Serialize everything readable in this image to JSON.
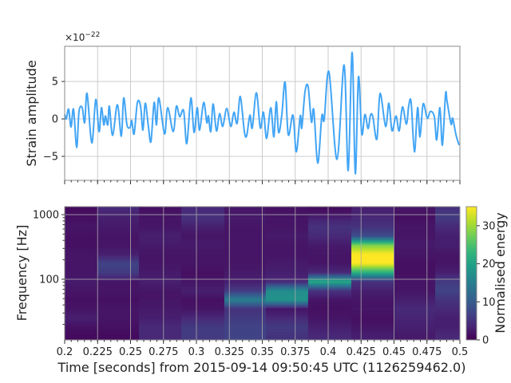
{
  "chart_data": [
    {
      "type": "line",
      "ylabel": "Strain amplitude",
      "y_multiplier_label": "×10",
      "y_multiplier_exponent": "−22",
      "xlim": [
        0.2,
        0.5
      ],
      "ylim": [
        -8.2,
        9.7
      ],
      "yticks": [
        -5,
        0,
        5
      ],
      "ytick_labels": [
        "−5",
        "0",
        "5"
      ],
      "xticks": [
        0.2,
        0.225,
        0.25,
        0.275,
        0.3,
        0.325,
        0.35,
        0.375,
        0.4,
        0.425,
        0.45,
        0.475,
        0.5
      ],
      "grid": true,
      "color": "#42a5f5",
      "series": [
        {
          "x": [
            0.2,
            0.2012,
            0.203,
            0.2048,
            0.2067,
            0.2091,
            0.2109,
            0.2133,
            0.2152,
            0.217,
            0.2206,
            0.2236,
            0.2261,
            0.2279,
            0.2297,
            0.2309,
            0.2327,
            0.2339,
            0.2364,
            0.24,
            0.243,
            0.2448,
            0.2473,
            0.2497,
            0.2509,
            0.2527,
            0.2552,
            0.2576,
            0.2594,
            0.2612,
            0.2636,
            0.2655,
            0.2679,
            0.2697,
            0.2715,
            0.2758,
            0.2782,
            0.2824,
            0.2848,
            0.2873,
            0.2903,
            0.2927,
            0.2958,
            0.2982,
            0.3006,
            0.3024,
            0.3055,
            0.3079,
            0.3091,
            0.3109,
            0.3127,
            0.3152,
            0.3176,
            0.32,
            0.323,
            0.3261,
            0.3285,
            0.3309,
            0.3333,
            0.3364,
            0.3382,
            0.3406,
            0.3424,
            0.3455,
            0.3485,
            0.3509,
            0.3533,
            0.3564,
            0.3588,
            0.3606,
            0.3624,
            0.3648,
            0.3673,
            0.3697,
            0.3733,
            0.3758,
            0.3788,
            0.38,
            0.3824,
            0.3848,
            0.3873,
            0.3891,
            0.3921,
            0.3952,
            0.397,
            0.4006,
            0.4067,
            0.4121,
            0.4152,
            0.4182,
            0.4206,
            0.423,
            0.4255,
            0.4279,
            0.4303,
            0.4321,
            0.4339,
            0.437,
            0.4394,
            0.4436,
            0.4461,
            0.4485,
            0.4515,
            0.4539,
            0.4564,
            0.4594,
            0.4612,
            0.463,
            0.4655,
            0.4679,
            0.4697,
            0.4721,
            0.4752,
            0.4776,
            0.4806,
            0.4824,
            0.4848,
            0.4867,
            0.4891,
            0.4903,
            0.4933,
            0.4945,
            0.497,
            0.4994
          ],
          "y": [
            0.6,
            0,
            1.3,
            -1.1,
            1.3,
            -3.8,
            1,
            1.5,
            -0.5,
            3.4,
            -3.2,
            2.6,
            -1.7,
            1.5,
            -0.8,
            0.4,
            -0.8,
            1.7,
            -2.2,
            1.9,
            -2.3,
            2.8,
            -0.8,
            -1.1,
            -0.2,
            -2,
            2.2,
            1.7,
            -1.5,
            2.1,
            -1.1,
            -3,
            2.2,
            -0.8,
            2.8,
            -2,
            1.5,
            -1.7,
            1.7,
            0.3,
            1.1,
            -3.3,
            2.8,
            -1.8,
            1.5,
            -1.5,
            2.2,
            -0.5,
            0.4,
            -1.7,
            2,
            -1.6,
            0.7,
            -1,
            1.4,
            -1,
            0.9,
            -0.6,
            3,
            -1.7,
            -2.2,
            0.5,
            -1.2,
            3.5,
            -1.2,
            0.9,
            -2.6,
            1.5,
            -2.4,
            2.3,
            -1.8,
            0.5,
            4.9,
            -2.1,
            0.5,
            -4.4,
            0.4,
            -1.2,
            3.6,
            4.3,
            -0.4,
            1.2,
            -5.9,
            0.4,
            -0.1,
            6.3,
            -5.4,
            7.2,
            -6.9,
            8.9,
            -7.3,
            5.6,
            -2,
            0.6,
            -1.3,
            0.5,
            0.3,
            -2.7,
            3.4,
            -1,
            2.1,
            -1.6,
            0.4,
            -1.6,
            1.6,
            -0.7,
            1.8,
            2.2,
            -4.4,
            1.5,
            -2.4,
            2,
            0.1,
            1,
            0.3,
            -2.8,
            1.5,
            -3.5,
            3.3,
            2.3,
            -0.7,
            0.1,
            -2.1,
            -3.5
          ]
        }
      ]
    },
    {
      "type": "heatmap",
      "xlabel": "Time [seconds] from 2015-09-14 09:50:45 UTC (1126259462.0)",
      "ylabel": "Frequency [Hz]",
      "xlim": [
        0.2,
        0.5
      ],
      "ylim": [
        11.5,
        1330
      ],
      "yscale": "log",
      "xticks": [
        0.2,
        0.225,
        0.25,
        0.275,
        0.3,
        0.325,
        0.35,
        0.375,
        0.4,
        0.425,
        0.45,
        0.475,
        0.5
      ],
      "xtick_labels": [
        "0.2",
        "0.225",
        "0.25",
        "0.275",
        "0.3",
        "0.325",
        "0.35",
        "0.375",
        "0.4",
        "0.425",
        "0.45",
        "0.475",
        "0.5"
      ],
      "yticks": [
        100,
        1000
      ],
      "ytick_labels": [
        "100",
        "1000"
      ],
      "grid": true,
      "colormap": "viridis",
      "colorbar": {
        "label": "Normalised energy",
        "range": [
          0,
          35
        ],
        "ticks": [
          0,
          10,
          20,
          30
        ],
        "tick_labels": [
          "0",
          "10",
          "20",
          "30"
        ]
      },
      "time_edges": [
        0.2,
        0.2248,
        0.2564,
        0.2885,
        0.3212,
        0.3527,
        0.3848,
        0.4176,
        0.4497,
        0.4812,
        0.5
      ],
      "freq_bins": [
        13,
        18,
        24,
        33,
        44,
        59,
        79,
        107,
        144,
        193,
        260,
        350,
        471,
        634,
        853,
        1148
      ],
      "energy": [
        [
          1,
          1.5,
          3,
          2,
          1.5,
          2,
          2.5,
          2,
          2,
          2,
          1.5,
          1.5,
          2,
          1.5,
          1,
          1
        ],
        [
          1,
          1.5,
          2,
          2,
          1.5,
          2,
          2,
          6,
          7,
          3,
          2,
          2,
          2.5,
          3,
          4,
          3
        ],
        [
          4,
          4,
          3,
          2.5,
          2,
          2,
          3,
          2.5,
          2,
          2,
          2.5,
          3,
          2,
          2,
          1.5,
          1.5
        ],
        [
          6,
          6,
          4,
          2,
          1.5,
          3,
          2,
          1.5,
          2,
          2,
          2.5,
          2,
          3,
          5,
          4,
          2
        ],
        [
          7,
          7,
          6,
          5,
          15,
          6,
          3,
          2.5,
          2,
          2,
          2,
          2,
          2,
          2.5,
          2,
          2
        ],
        [
          5,
          6,
          4,
          2,
          18,
          17,
          4,
          3,
          2.5,
          2,
          2,
          2.5,
          2,
          2,
          1.5,
          2
        ],
        [
          4,
          3,
          2,
          1.5,
          2,
          5,
          21,
          4,
          2,
          2,
          2.5,
          4,
          5,
          3,
          1,
          1
        ],
        [
          3,
          2,
          1.5,
          2,
          2,
          3,
          5,
          22,
          35,
          35,
          28,
          8,
          5,
          4,
          3,
          2.5
        ],
        [
          2.5,
          3,
          3.5,
          4,
          3,
          2,
          2,
          1.5,
          1.5,
          2,
          2.5,
          2,
          2,
          1.5,
          2,
          2
        ],
        [
          4,
          3,
          3,
          4,
          5,
          7,
          6,
          3,
          2,
          2,
          3,
          3,
          4,
          6,
          5,
          3
        ]
      ]
    }
  ]
}
